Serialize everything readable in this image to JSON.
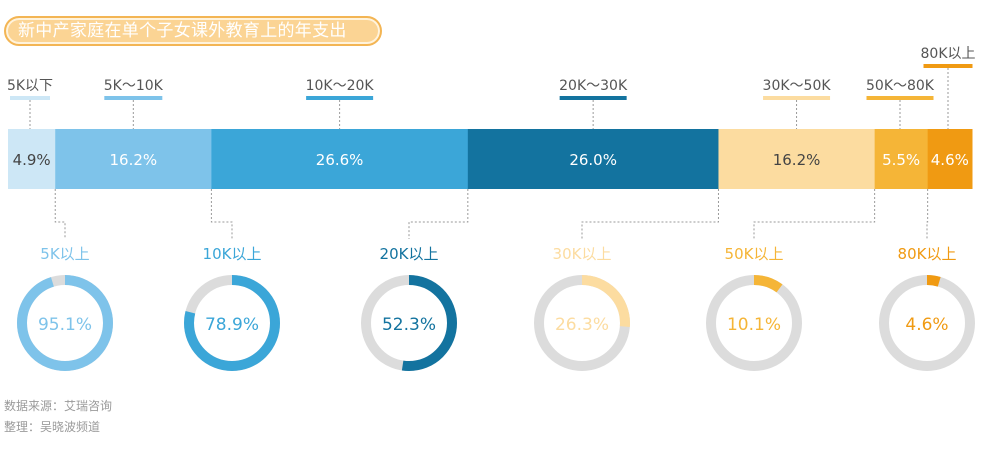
{
  "title": "新中产家庭在单个子女课外教育上的年支出",
  "chart_data": [
    {
      "type": "stacked-bar",
      "title": "新中产家庭在单个子女课外教育上的年支出",
      "categories": [
        "5K以下",
        "5K～10K",
        "10K～20K",
        "20K～30K",
        "30K～50K",
        "50K～80K",
        "80K以上"
      ],
      "values": [
        4.9,
        16.2,
        26.6,
        26.0,
        16.2,
        5.5,
        4.6
      ],
      "value_labels": [
        "4.9%",
        "16.2%",
        "26.6%",
        "26.0%",
        "16.2%",
        "5.5%",
        "4.6%"
      ],
      "unit": "%",
      "colors": [
        "#cde7f6",
        "#7ec3ea",
        "#3ba6d8",
        "#13739f",
        "#fcdca0",
        "#f5b537",
        "#f09a12"
      ],
      "label_colors": [
        "#444444",
        "#ffffff",
        "#ffffff",
        "#ffffff",
        "#444444",
        "#ffffff",
        "#ffffff"
      ],
      "category_label_color": "#555555"
    },
    {
      "type": "donut",
      "labels": [
        "5K以上",
        "10K以上",
        "20K以上",
        "30K以上",
        "50K以上",
        "80K以上"
      ],
      "values": [
        95.1,
        78.9,
        52.3,
        26.3,
        10.1,
        4.6
      ],
      "value_labels": [
        "95.1%",
        "78.9%",
        "52.3%",
        "26.3%",
        "10.1%",
        "4.6%"
      ],
      "unit": "%",
      "colors": [
        "#7ec3ea",
        "#3ba6d8",
        "#13739f",
        "#fcdca0",
        "#f5b537",
        "#f09a12"
      ],
      "track_color": "#dcdcdc"
    }
  ],
  "footer": {
    "source": "数据来源：艾瑞咨询",
    "editor": "整理：吴晓波频道"
  }
}
